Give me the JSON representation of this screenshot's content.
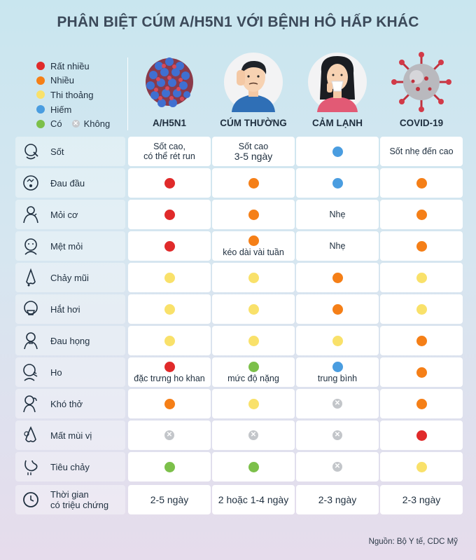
{
  "title": "PHÂN BIỆT CÚM A/H5N1 VỚI BỆNH HÔ HẤP KHÁC",
  "legend": [
    {
      "label": "Rất nhiều",
      "color": "#e02a2a"
    },
    {
      "label": "Nhiều",
      "color": "#f57f17"
    },
    {
      "label": "Thi thoảng",
      "color": "#f9e16a"
    },
    {
      "label": "Hiếm",
      "color": "#4a9de0"
    },
    {
      "label": "Có",
      "color": "#7cc04a"
    }
  ],
  "legend_none": "Không",
  "columns": [
    "A/H5N1",
    "CÚM THƯỜNG",
    "CẢM LẠNH",
    "COVID-19"
  ],
  "rows": [
    {
      "label": "Sốt",
      "icon": "fever-icon",
      "cells": [
        {
          "text": "Sốt cao,"
        },
        {
          "text": "Sốt cao"
        },
        {
          "level": "hiem"
        },
        {
          "text": "Sốt nhẹ đến cao"
        }
      ]
    },
    {
      "label": "Đau đầu",
      "icon": "headache-icon",
      "cells": [
        {
          "level": "rat-nhieu"
        },
        {
          "level": "nhieu"
        },
        {
          "level": "hiem"
        },
        {
          "level": "nhieu"
        }
      ]
    },
    {
      "label": "Mỏi cơ",
      "icon": "muscle-ache-icon",
      "cells": [
        {
          "level": "rat-nhieu"
        },
        {
          "level": "nhieu"
        },
        {
          "text": "Nhẹ"
        },
        {
          "level": "nhieu"
        }
      ]
    },
    {
      "label": "Mệt mỏi",
      "icon": "fatigue-icon",
      "cells": [
        {
          "level": "rat-nhieu"
        },
        {
          "level": "nhieu",
          "note": "kéo dài vài tuần"
        },
        {
          "text": "Nhẹ"
        },
        {
          "level": "nhieu"
        }
      ]
    },
    {
      "label": "Chảy mũi",
      "icon": "runny-nose-icon",
      "cells": [
        {
          "level": "thi-thoang"
        },
        {
          "level": "thi-thoang"
        },
        {
          "level": "nhieu"
        },
        {
          "level": "thi-thoang"
        }
      ]
    },
    {
      "label": "Hắt hơi",
      "icon": "sneeze-icon",
      "cells": [
        {
          "level": "thi-thoang"
        },
        {
          "level": "thi-thoang"
        },
        {
          "level": "nhieu"
        },
        {
          "level": "thi-thoang"
        }
      ]
    },
    {
      "label": "Đau họng",
      "icon": "sore-throat-icon",
      "cells": [
        {
          "level": "thi-thoang"
        },
        {
          "level": "thi-thoang"
        },
        {
          "level": "thi-thoang"
        },
        {
          "level": "nhieu"
        }
      ]
    },
    {
      "label": "Ho",
      "icon": "cough-icon",
      "cells": [
        {
          "level": "rat-nhieu",
          "note": "đặc trưng ho khan"
        },
        {
          "level": "co",
          "note": "mức độ nặng"
        },
        {
          "level": "hiem",
          "note": "trung bình"
        },
        {
          "level": "nhieu"
        }
      ]
    },
    {
      "label": "Khó thở",
      "icon": "breathing-difficulty-icon",
      "cells": [
        {
          "level": "nhieu"
        },
        {
          "level": "thi-thoang"
        },
        {
          "level": "khong"
        },
        {
          "level": "nhieu"
        }
      ]
    },
    {
      "label": "Mất mùi vị",
      "icon": "loss-of-smell-icon",
      "cells": [
        {
          "level": "khong"
        },
        {
          "level": "khong"
        },
        {
          "level": "khong"
        },
        {
          "level": "rat-nhieu"
        }
      ]
    },
    {
      "label": "Tiêu chảy",
      "icon": "diarrhea-icon",
      "cells": [
        {
          "level": "co"
        },
        {
          "level": "co"
        },
        {
          "level": "khong"
        },
        {
          "level": "thi-thoang"
        }
      ]
    },
    {
      "label": "Thời gian",
      "icon": "clock-icon",
      "cells": [
        {
          "big": "2-5 ngày"
        },
        {
          "big": "2 hoặc 1-4 ngày"
        },
        {
          "big": "2-3 ngày"
        },
        {
          "big": "2-3 ngày"
        }
      ]
    }
  ],
  "row0_a_line2": "có thể rét run",
  "row0_b_line2": "3-5 ngày",
  "row11_line2": "có triệu chứng",
  "source": "Nguồn: Bộ Y tế, CDC Mỹ",
  "colors": {
    "rat-nhieu": "#e02a2a",
    "nhieu": "#f57f17",
    "thi-thoang": "#f9e16a",
    "hiem": "#4a9de0",
    "co": "#7cc04a"
  }
}
